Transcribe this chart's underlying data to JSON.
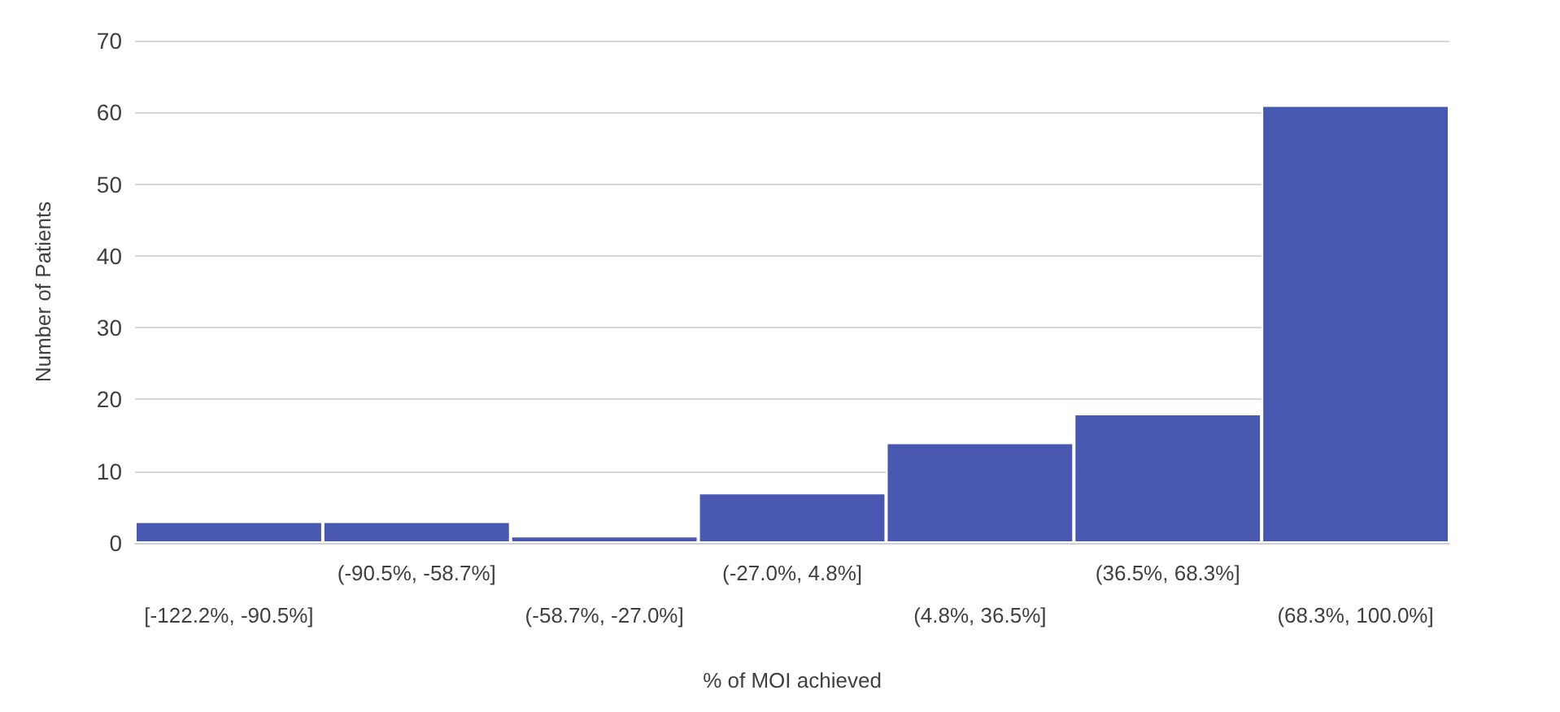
{
  "chart_data": {
    "type": "bar",
    "xlabel": "% of MOI achieved",
    "ylabel": "Number of Patients",
    "categories": [
      "[-122.2%, -90.5%]",
      "(-90.5%, -58.7%]",
      "(-58.7%, -27.0%]",
      "(-27.0%, 4.8%]",
      "(4.8%, 36.5%]",
      "(36.5%, 68.3%]",
      "(68.3%, 100.0%]"
    ],
    "values": [
      3,
      3,
      1,
      7,
      14,
      18,
      61
    ],
    "color": "#4858b0",
    "ylim": [
      0,
      70
    ],
    "yticks": [
      0,
      10,
      20,
      30,
      40,
      50,
      60,
      70
    ],
    "grid": "y"
  }
}
